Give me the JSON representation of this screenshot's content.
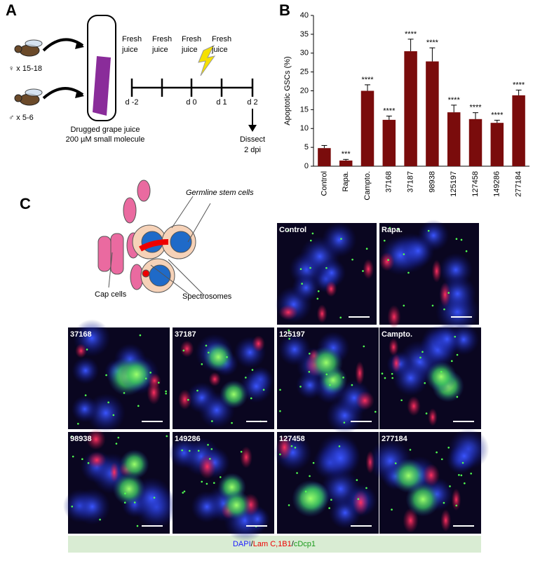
{
  "panel_a": {
    "label": "A",
    "female": "♀ x 15-18",
    "male": "♂ x 5-6",
    "tube_line1": "Drugged grape juice",
    "tube_line2": "200 µM small molecule",
    "feeds": [
      [
        "Fresh",
        "juice"
      ],
      [
        "Fresh",
        "juice"
      ],
      [
        "Fresh",
        "juice"
      ],
      [
        "Fresh",
        "juice"
      ]
    ],
    "days": [
      "d -2",
      "d 0",
      "d 1",
      "d 2"
    ],
    "dissect": [
      "Dissect",
      "2 dpi"
    ]
  },
  "chart_data": {
    "type": "bar",
    "panel_label": "B",
    "y_label": "Apoptotic GSCs (%)",
    "categories": [
      "Control",
      "Rapa.",
      "Campto.",
      "37168",
      "37187",
      "98938",
      "125197",
      "127458",
      "149286",
      "277184"
    ],
    "values": [
      4.8,
      1.5,
      20,
      12.3,
      30.5,
      27.8,
      14.3,
      12.5,
      11.5,
      18.8
    ],
    "errors": [
      0.7,
      0.3,
      1.6,
      1.0,
      3.2,
      3.6,
      1.9,
      1.7,
      0.7,
      1.4
    ],
    "annotations": [
      null,
      "***",
      "****",
      "****",
      "****",
      "****",
      "****",
      "****",
      "****",
      "****"
    ],
    "color": "#7a0c0c",
    "ylim": [
      0,
      40
    ],
    "yticks": [
      0,
      5,
      10,
      15,
      20,
      25,
      30,
      35,
      40
    ]
  },
  "panel_c": {
    "label": "C",
    "diagram": {
      "gsc": "Germline stem cells",
      "cap": "Cap cells",
      "spectro": "Spectrosomes"
    },
    "images": [
      "Control",
      "Rapa.",
      "37168",
      "37187",
      "125197",
      "Campto.",
      "98938",
      "149286",
      "127458",
      "277184"
    ],
    "stain": [
      "DAPI",
      "/",
      "Lam C,1B1",
      "/",
      "cDcp1"
    ]
  }
}
